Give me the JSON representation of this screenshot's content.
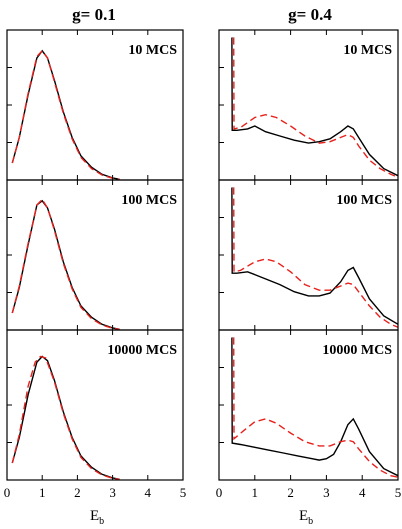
{
  "colors": {
    "series_black": "#000000",
    "series_red": "#e8211d"
  },
  "columns": [
    {
      "title": "g= 0.1"
    },
    {
      "title": "g= 0.4"
    }
  ],
  "xaxis": {
    "label_main": "E",
    "label_sub": "b",
    "ticks": [
      "0",
      "1",
      "2",
      "3",
      "4",
      "5"
    ]
  },
  "chart_data": [
    {
      "type": "line",
      "column": "g= 0.1",
      "label": "10 MCS",
      "xlim": [
        0,
        5
      ],
      "ylim": [
        0,
        1.0
      ],
      "series": [
        {
          "color": "black",
          "x": [
            0.15,
            0.35,
            0.6,
            0.85,
            1.0,
            1.15,
            1.35,
            1.6,
            1.85,
            2.1,
            2.4,
            2.7,
            3.0,
            3.2
          ],
          "y": [
            0.12,
            0.3,
            0.6,
            0.86,
            0.91,
            0.86,
            0.7,
            0.48,
            0.3,
            0.17,
            0.09,
            0.04,
            0.015,
            0.005
          ]
        },
        {
          "color": "red",
          "x": [
            0.15,
            0.35,
            0.6,
            0.85,
            1.0,
            1.15,
            1.35,
            1.6,
            1.85,
            2.1,
            2.4,
            2.7,
            3.0,
            3.2
          ],
          "y": [
            0.12,
            0.3,
            0.61,
            0.87,
            0.91,
            0.86,
            0.69,
            0.47,
            0.29,
            0.16,
            0.08,
            0.035,
            0.012,
            0.004
          ]
        }
      ]
    },
    {
      "type": "line",
      "column": "g= 0.4",
      "label": "10 MCS",
      "xlim": [
        0,
        5
      ],
      "ylim": [
        0,
        1.0
      ],
      "series": [
        {
          "color": "black",
          "x": [
            0.35,
            0.36,
            0.37,
            0.5,
            0.8,
            1.0,
            1.3,
            1.7,
            2.1,
            2.5,
            2.8,
            3.1,
            3.4,
            3.6,
            3.75,
            3.9,
            4.2,
            4.6,
            5.0
          ],
          "y": [
            1.0,
            1.0,
            0.35,
            0.35,
            0.36,
            0.38,
            0.34,
            0.31,
            0.28,
            0.26,
            0.27,
            0.29,
            0.34,
            0.38,
            0.36,
            0.3,
            0.18,
            0.08,
            0.03
          ]
        },
        {
          "color": "red",
          "x": [
            0.4,
            0.41,
            0.42,
            0.6,
            1.0,
            1.3,
            1.6,
            2.0,
            2.4,
            2.8,
            3.1,
            3.4,
            3.6,
            3.75,
            3.9,
            4.2,
            4.5,
            4.8,
            5.0
          ],
          "y": [
            1.0,
            1.0,
            0.36,
            0.37,
            0.44,
            0.46,
            0.44,
            0.38,
            0.31,
            0.26,
            0.27,
            0.3,
            0.32,
            0.3,
            0.24,
            0.14,
            0.08,
            0.04,
            0.02
          ]
        }
      ]
    },
    {
      "type": "line",
      "column": "g= 0.1",
      "label": "100 MCS",
      "xlim": [
        0,
        5
      ],
      "ylim": [
        0,
        1.0
      ],
      "series": [
        {
          "color": "black",
          "x": [
            0.15,
            0.35,
            0.6,
            0.85,
            1.0,
            1.15,
            1.35,
            1.6,
            1.85,
            2.1,
            2.4,
            2.7,
            3.0,
            3.2
          ],
          "y": [
            0.12,
            0.3,
            0.6,
            0.88,
            0.91,
            0.86,
            0.71,
            0.48,
            0.3,
            0.17,
            0.09,
            0.04,
            0.015,
            0.005
          ]
        },
        {
          "color": "red",
          "x": [
            0.15,
            0.35,
            0.6,
            0.85,
            1.0,
            1.15,
            1.35,
            1.6,
            1.85,
            2.1,
            2.4,
            2.7,
            3.0,
            3.2
          ],
          "y": [
            0.12,
            0.31,
            0.61,
            0.88,
            0.92,
            0.86,
            0.7,
            0.47,
            0.29,
            0.16,
            0.08,
            0.035,
            0.012,
            0.004
          ]
        }
      ]
    },
    {
      "type": "line",
      "column": "g= 0.4",
      "label": "100 MCS",
      "xlim": [
        0,
        5
      ],
      "ylim": [
        0,
        1.0
      ],
      "series": [
        {
          "color": "black",
          "x": [
            0.35,
            0.36,
            0.37,
            0.5,
            0.8,
            1.0,
            1.3,
            1.7,
            2.1,
            2.5,
            2.8,
            3.1,
            3.4,
            3.6,
            3.75,
            3.9,
            4.2,
            4.6,
            5.0
          ],
          "y": [
            1.0,
            1.0,
            0.4,
            0.4,
            0.41,
            0.39,
            0.36,
            0.32,
            0.27,
            0.24,
            0.24,
            0.26,
            0.34,
            0.42,
            0.44,
            0.37,
            0.22,
            0.1,
            0.04
          ]
        },
        {
          "color": "red",
          "x": [
            0.4,
            0.41,
            0.42,
            0.6,
            1.0,
            1.3,
            1.6,
            2.0,
            2.4,
            2.8,
            3.1,
            3.4,
            3.6,
            3.75,
            3.9,
            4.2,
            4.5,
            4.8,
            5.0
          ],
          "y": [
            1.0,
            1.0,
            0.41,
            0.42,
            0.48,
            0.5,
            0.48,
            0.41,
            0.32,
            0.28,
            0.28,
            0.31,
            0.33,
            0.32,
            0.27,
            0.17,
            0.09,
            0.04,
            0.02
          ]
        }
      ]
    },
    {
      "type": "line",
      "column": "g= 0.1",
      "label": "10000 MCS",
      "xlim": [
        0,
        5
      ],
      "ylim": [
        0,
        1.0
      ],
      "series": [
        {
          "color": "black",
          "x": [
            0.15,
            0.35,
            0.6,
            0.85,
            1.0,
            1.15,
            1.35,
            1.6,
            1.85,
            2.1,
            2.4,
            2.7,
            3.0,
            3.2
          ],
          "y": [
            0.12,
            0.3,
            0.6,
            0.83,
            0.87,
            0.84,
            0.7,
            0.48,
            0.3,
            0.17,
            0.09,
            0.04,
            0.015,
            0.005
          ]
        },
        {
          "color": "red",
          "x": [
            0.15,
            0.35,
            0.6,
            0.8,
            0.95,
            1.1,
            1.35,
            1.6,
            1.85,
            2.1,
            2.4,
            2.7,
            3.0,
            3.2
          ],
          "y": [
            0.12,
            0.32,
            0.66,
            0.83,
            0.87,
            0.86,
            0.69,
            0.47,
            0.29,
            0.16,
            0.08,
            0.035,
            0.012,
            0.004
          ]
        }
      ]
    },
    {
      "type": "line",
      "column": "g= 0.4",
      "label": "10000 MCS",
      "xlim": [
        0,
        5
      ],
      "ylim": [
        0,
        1.0
      ],
      "series": [
        {
          "color": "black",
          "x": [
            0.35,
            0.36,
            0.37,
            0.6,
            1.0,
            1.4,
            1.8,
            2.2,
            2.6,
            2.8,
            3.0,
            3.2,
            3.4,
            3.6,
            3.75,
            3.9,
            4.2,
            4.6,
            5.0
          ],
          "y": [
            1.0,
            1.0,
            0.26,
            0.25,
            0.23,
            0.21,
            0.19,
            0.17,
            0.15,
            0.14,
            0.15,
            0.18,
            0.27,
            0.39,
            0.43,
            0.36,
            0.2,
            0.08,
            0.03
          ]
        },
        {
          "color": "red",
          "x": [
            0.4,
            0.41,
            0.42,
            0.7,
            1.0,
            1.3,
            1.6,
            2.0,
            2.4,
            2.8,
            3.1,
            3.4,
            3.6,
            3.75,
            3.9,
            4.2,
            4.5,
            4.8,
            5.0
          ],
          "y": [
            1.0,
            1.0,
            0.29,
            0.35,
            0.41,
            0.43,
            0.4,
            0.33,
            0.27,
            0.24,
            0.24,
            0.27,
            0.28,
            0.27,
            0.22,
            0.13,
            0.07,
            0.03,
            0.02
          ]
        }
      ]
    }
  ]
}
